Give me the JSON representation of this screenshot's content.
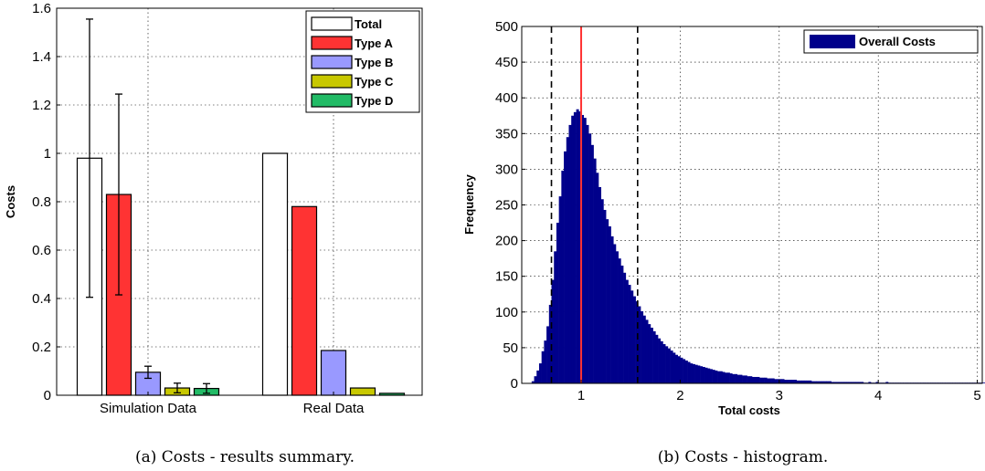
{
  "chart_data": [
    {
      "type": "bar",
      "caption": "(a) Costs - results summary.",
      "categories": [
        "Simulation Data",
        "Real Data"
      ],
      "ylabel": "Costs",
      "xlabel": "",
      "ylim": [
        0,
        1.6
      ],
      "yticks": [
        0,
        0.2,
        0.4,
        0.6,
        0.8,
        1,
        1.2,
        1.4,
        1.6
      ],
      "ytick_labels": [
        "0",
        "0.2",
        "0.4",
        "0.6",
        "0.8",
        "1",
        "1.2",
        "1.4",
        "1.6"
      ],
      "grid": true,
      "legend_position": "top-right",
      "series": [
        {
          "name": "Total",
          "color": "#ffffff",
          "values": [
            0.98,
            1.0
          ],
          "error": [
            0.575,
            null
          ]
        },
        {
          "name": "Type A",
          "color": "#ff3333",
          "values": [
            0.83,
            0.78
          ],
          "error": [
            0.415,
            null
          ]
        },
        {
          "name": "Type B",
          "color": "#9999ff",
          "values": [
            0.095,
            0.185
          ],
          "error": [
            0.025,
            null
          ]
        },
        {
          "name": "Type C",
          "color": "#c8c800",
          "values": [
            0.03,
            0.03
          ],
          "error": [
            0.02,
            null
          ]
        },
        {
          "name": "Type D",
          "color": "#22bb66",
          "values": [
            0.028,
            0.008
          ],
          "error": [
            0.02,
            null
          ]
        }
      ]
    },
    {
      "type": "histogram",
      "caption": "(b) Costs - histogram.",
      "xlabel": "Total costs",
      "ylabel": "Frequency",
      "xlim": [
        0.4,
        5.05
      ],
      "ylim": [
        0,
        500
      ],
      "xticks": [
        1,
        2,
        3,
        4,
        5
      ],
      "yticks": [
        0,
        50,
        100,
        150,
        200,
        250,
        300,
        350,
        400,
        450,
        500
      ],
      "grid": true,
      "legend_position": "top-right",
      "series_name": "Overall Costs",
      "bar_color": "#00008b",
      "bin_width": 0.025,
      "bins_x_start": 0.5,
      "bin_values": [
        3,
        10,
        18,
        28,
        45,
        60,
        80,
        110,
        145,
        185,
        225,
        262,
        298,
        325,
        345,
        362,
        375,
        380,
        384,
        381,
        376,
        372,
        362,
        350,
        334,
        315,
        295,
        275,
        258,
        243,
        230,
        220,
        206,
        195,
        185,
        175,
        165,
        155,
        145,
        138,
        130,
        122,
        115,
        108,
        101,
        95,
        89,
        83,
        78,
        73,
        68,
        63,
        59,
        55,
        52,
        49,
        46,
        43,
        40,
        38,
        36,
        34,
        32,
        30,
        28,
        27,
        26,
        25,
        24,
        23,
        22,
        21,
        20,
        19,
        18,
        17,
        17,
        16,
        15,
        15,
        14,
        13,
        13,
        12,
        12,
        11,
        11,
        10,
        10,
        9,
        9,
        9,
        8,
        8,
        8,
        7,
        7,
        7,
        6,
        6,
        6,
        6,
        5,
        5,
        5,
        5,
        5,
        4,
        4,
        4,
        4,
        4,
        4,
        3,
        3,
        3,
        3,
        3,
        3,
        3,
        3,
        2,
        2,
        2,
        2,
        2,
        2,
        2,
        2,
        2,
        2,
        2,
        2,
        2,
        1,
        1,
        2,
        1,
        1,
        2,
        1,
        1,
        1,
        2,
        1,
        1,
        1,
        1,
        1,
        1,
        1,
        1,
        1,
        1,
        1,
        1,
        1,
        1,
        1,
        1,
        1,
        1,
        1,
        1,
        1,
        1,
        1,
        1,
        1,
        1,
        1,
        1,
        1,
        1,
        1,
        1,
        1,
        1,
        1,
        1,
        1,
        1,
        1,
        1,
        1,
        1,
        1,
        1,
        1,
        1,
        1,
        1,
        1,
        1,
        1,
        1,
        1,
        1,
        1,
        1,
        1,
        1,
        1,
        1,
        1,
        1,
        1,
        1,
        1,
        1,
        1,
        1,
        1,
        1,
        1,
        1,
        1,
        1,
        1,
        1,
        1,
        1,
        1,
        1,
        1,
        1,
        1,
        1,
        1,
        1,
        1,
        1,
        1,
        1,
        1,
        1,
        1,
        1,
        1,
        1,
        1,
        1,
        1,
        1,
        1,
        1,
        1,
        1,
        1,
        1,
        1,
        1,
        1,
        1,
        1,
        1,
        1,
        1,
        1,
        1,
        1,
        1,
        1,
        1,
        1,
        1,
        1,
        1,
        1,
        1,
        1
      ],
      "reference_lines": [
        {
          "x": 0.7,
          "style": "dashed",
          "color": "#000000"
        },
        {
          "x": 1.0,
          "style": "solid",
          "color": "#ff3333"
        },
        {
          "x": 1.57,
          "style": "dashed",
          "color": "#000000"
        }
      ]
    }
  ]
}
